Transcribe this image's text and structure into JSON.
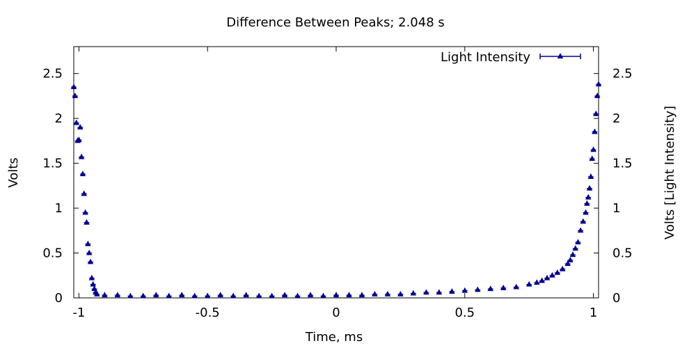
{
  "chart_data": {
    "type": "scatter",
    "title": "Difference Between Peaks; 2.048 s",
    "xlabel": "Time, ms",
    "ylabel": "Volts",
    "y2label": "Volts [Light Intensity]",
    "xlim": [
      -1.02,
      1.02
    ],
    "ylim": [
      0,
      2.8
    ],
    "y2lim": [
      0,
      2.8
    ],
    "grid": false,
    "legend_position": "top-right",
    "x_ticks": [
      -1,
      -0.5,
      0,
      0.5,
      1
    ],
    "x_tick_labels": [
      "-1",
      "-0.5",
      "0",
      "0.5",
      "1"
    ],
    "y_ticks": [
      0,
      0.5,
      1,
      1.5,
      2,
      2.5
    ],
    "y_tick_labels": [
      "0",
      "0.5",
      "1",
      "1.5",
      "2",
      "2.5"
    ],
    "y2_ticks": [
      0,
      0.5,
      1,
      1.5,
      2,
      2.5
    ],
    "y2_tick_labels": [
      "0",
      "0.5",
      "1",
      "1.5",
      "2",
      "2.5"
    ],
    "colors": {
      "series": "#00008b",
      "axis": "#000000"
    },
    "series": [
      {
        "name": "Light Intensity",
        "marker": "triangle-with-errorbar",
        "x": [
          -1.02,
          -1.015,
          -1.01,
          -1.005,
          -1.0,
          -0.995,
          -0.99,
          -0.985,
          -0.98,
          -0.975,
          -0.97,
          -0.965,
          -0.96,
          -0.955,
          -0.95,
          -0.945,
          -0.94,
          -0.935,
          -0.93,
          -0.9,
          -0.85,
          -0.8,
          -0.75,
          -0.7,
          -0.65,
          -0.6,
          -0.55,
          -0.5,
          -0.45,
          -0.4,
          -0.35,
          -0.3,
          -0.25,
          -0.2,
          -0.15,
          -0.1,
          -0.05,
          0,
          0.05,
          0.1,
          0.15,
          0.2,
          0.25,
          0.3,
          0.35,
          0.4,
          0.45,
          0.5,
          0.55,
          0.6,
          0.65,
          0.7,
          0.75,
          0.78,
          0.8,
          0.82,
          0.84,
          0.86,
          0.88,
          0.9,
          0.91,
          0.92,
          0.93,
          0.94,
          0.95,
          0.96,
          0.97,
          0.975,
          0.98,
          0.985,
          0.99,
          0.995,
          1.0,
          1.005,
          1.01,
          1.015,
          1.02
        ],
        "y": [
          2.35,
          2.25,
          1.95,
          1.75,
          1.76,
          1.9,
          1.57,
          1.38,
          1.16,
          0.95,
          0.84,
          0.6,
          0.5,
          0.4,
          0.22,
          0.15,
          0.1,
          0.06,
          0.04,
          0.03,
          0.03,
          0.02,
          0.02,
          0.03,
          0.02,
          0.03,
          0.02,
          0.02,
          0.03,
          0.02,
          0.03,
          0.02,
          0.02,
          0.03,
          0.02,
          0.03,
          0.02,
          0.03,
          0.03,
          0.03,
          0.04,
          0.04,
          0.04,
          0.05,
          0.06,
          0.06,
          0.07,
          0.08,
          0.09,
          0.1,
          0.11,
          0.12,
          0.15,
          0.17,
          0.19,
          0.22,
          0.25,
          0.28,
          0.32,
          0.38,
          0.42,
          0.48,
          0.55,
          0.62,
          0.75,
          0.85,
          0.95,
          1.05,
          1.12,
          1.22,
          1.35,
          1.55,
          1.65,
          1.85,
          2.05,
          2.25,
          2.38
        ]
      }
    ]
  }
}
